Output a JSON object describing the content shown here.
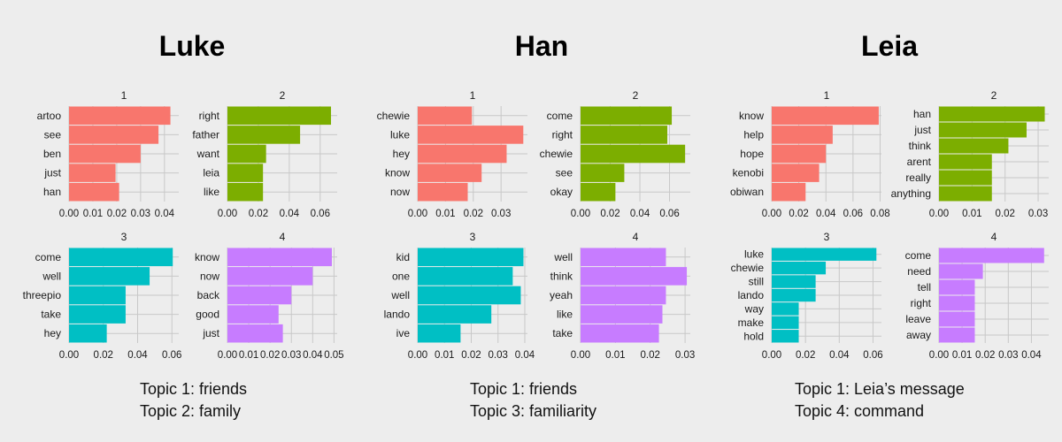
{
  "colors": {
    "1": "#f8766d",
    "2": "#7cae00",
    "3": "#00bfc4",
    "4": "#c77cff"
  },
  "characters": [
    {
      "name": "Luke",
      "captions": [
        "Topic 1: friends",
        "Topic 2: family"
      ],
      "chart_data": [
        {
          "type": "bar",
          "panel": "1",
          "categories": [
            "artoo",
            "see",
            "ben",
            "just",
            "han"
          ],
          "values": [
            0.0425,
            0.0375,
            0.03,
            0.0195,
            0.021
          ],
          "xlim": [
            0,
            0.046
          ],
          "ticks": [
            0.0,
            0.01,
            0.02,
            0.03,
            0.04
          ],
          "tick_labels": [
            "0.00",
            "0.01",
            "0.02",
            "0.03",
            "0.04"
          ]
        },
        {
          "type": "bar",
          "panel": "2",
          "categories": [
            "right",
            "father",
            "want",
            "leia",
            "like"
          ],
          "values": [
            0.067,
            0.047,
            0.025,
            0.023,
            0.023
          ],
          "xlim": [
            0,
            0.071
          ],
          "ticks": [
            0.0,
            0.02,
            0.04,
            0.06
          ],
          "tick_labels": [
            "0.00",
            "0.02",
            "0.04",
            "0.06"
          ]
        },
        {
          "type": "bar",
          "panel": "3",
          "categories": [
            "come",
            "well",
            "threepio",
            "take",
            "hey"
          ],
          "values": [
            0.0605,
            0.047,
            0.033,
            0.033,
            0.022
          ],
          "xlim": [
            0,
            0.064
          ],
          "ticks": [
            0.0,
            0.02,
            0.04,
            0.06
          ],
          "tick_labels": [
            "0.00",
            "0.02",
            "0.04",
            "0.06"
          ]
        },
        {
          "type": "bar",
          "panel": "4",
          "categories": [
            "know",
            "now",
            "back",
            "good",
            "just"
          ],
          "values": [
            0.049,
            0.04,
            0.03,
            0.024,
            0.026
          ],
          "xlim": [
            0,
            0.0515
          ],
          "ticks": [
            0.0,
            0.01,
            0.02,
            0.03,
            0.04,
            0.05
          ],
          "tick_labels": [
            "0.00",
            "0.01",
            "0.02",
            "0.03",
            "0.04",
            "0.05"
          ]
        }
      ]
    },
    {
      "name": "Han",
      "captions": [
        "Topic 1: friends",
        "Topic 3: familiarity"
      ],
      "chart_data": [
        {
          "type": "bar",
          "panel": "1",
          "categories": [
            "chewie",
            "luke",
            "hey",
            "know",
            "now"
          ],
          "values": [
            0.0195,
            0.038,
            0.032,
            0.023,
            0.018
          ],
          "xlim": [
            0,
            0.0395
          ],
          "ticks": [
            0.0,
            0.01,
            0.02,
            0.03
          ],
          "tick_labels": [
            "0.00",
            "0.01",
            "0.02",
            "0.03"
          ]
        },
        {
          "type": "bar",
          "panel": "2",
          "categories": [
            "come",
            "right",
            "chewie",
            "see",
            "okay"
          ],
          "values": [
            0.0615,
            0.0585,
            0.0705,
            0.0295,
            0.0235
          ],
          "xlim": [
            0,
            0.074
          ],
          "ticks": [
            0.0,
            0.02,
            0.04,
            0.06
          ],
          "tick_labels": [
            "0.00",
            "0.02",
            "0.04",
            "0.06"
          ]
        },
        {
          "type": "bar",
          "panel": "3",
          "categories": [
            "kid",
            "one",
            "well",
            "lando",
            "ive"
          ],
          "values": [
            0.0395,
            0.0355,
            0.0385,
            0.0275,
            0.016
          ],
          "xlim": [
            0,
            0.041
          ],
          "ticks": [
            0.0,
            0.01,
            0.02,
            0.03,
            0.04
          ],
          "tick_labels": [
            "0.00",
            "0.01",
            "0.02",
            "0.03",
            "0.04"
          ]
        },
        {
          "type": "bar",
          "panel": "4",
          "categories": [
            "well",
            "think",
            "yeah",
            "like",
            "take"
          ],
          "values": [
            0.0245,
            0.0305,
            0.0245,
            0.0235,
            0.0225
          ],
          "xlim": [
            0,
            0.0315
          ],
          "ticks": [
            0.0,
            0.01,
            0.02,
            0.03
          ],
          "tick_labels": [
            "0.00",
            "0.01",
            "0.02",
            "0.03"
          ]
        }
      ]
    },
    {
      "name": "Leia",
      "captions": [
        "Topic 1: Leia’s message",
        "Topic 4: command"
      ],
      "chart_data": [
        {
          "type": "bar",
          "panel": "1",
          "categories": [
            "know",
            "help",
            "hope",
            "kenobi",
            "obiwan"
          ],
          "values": [
            0.079,
            0.045,
            0.04,
            0.035,
            0.025
          ],
          "xlim": [
            0,
            0.081
          ],
          "ticks": [
            0.0,
            0.02,
            0.04,
            0.06,
            0.08
          ],
          "tick_labels": [
            "0.00",
            "0.02",
            "0.04",
            "0.06",
            "0.08"
          ]
        },
        {
          "type": "bar",
          "panel": "2",
          "categories": [
            "han",
            "just",
            "think",
            "arent",
            "really",
            "anything"
          ],
          "values": [
            0.032,
            0.0265,
            0.021,
            0.016,
            0.016,
            0.016
          ],
          "xlim": [
            0,
            0.0332
          ],
          "ticks": [
            0.0,
            0.01,
            0.02,
            0.03
          ],
          "tick_labels": [
            "0.00",
            "0.01",
            "0.02",
            "0.03"
          ]
        },
        {
          "type": "bar",
          "panel": "3",
          "categories": [
            "luke",
            "chewie",
            "still",
            "lando",
            "way",
            "make",
            "hold"
          ],
          "values": [
            0.062,
            0.032,
            0.026,
            0.026,
            0.016,
            0.016,
            0.016
          ],
          "xlim": [
            0,
            0.065
          ],
          "ticks": [
            0.0,
            0.02,
            0.04,
            0.06
          ],
          "tick_labels": [
            "0.00",
            "0.02",
            "0.04",
            "0.06"
          ]
        },
        {
          "type": "bar",
          "panel": "4",
          "categories": [
            "come",
            "need",
            "tell",
            "right",
            "leave",
            "away"
          ],
          "values": [
            0.0455,
            0.019,
            0.0155,
            0.0155,
            0.0155,
            0.0155
          ],
          "xlim": [
            0,
            0.0475
          ],
          "ticks": [
            0.0,
            0.01,
            0.02,
            0.03,
            0.04
          ],
          "tick_labels": [
            "0.00",
            "0.01",
            "0.02",
            "0.03",
            "0.04"
          ]
        }
      ]
    }
  ]
}
